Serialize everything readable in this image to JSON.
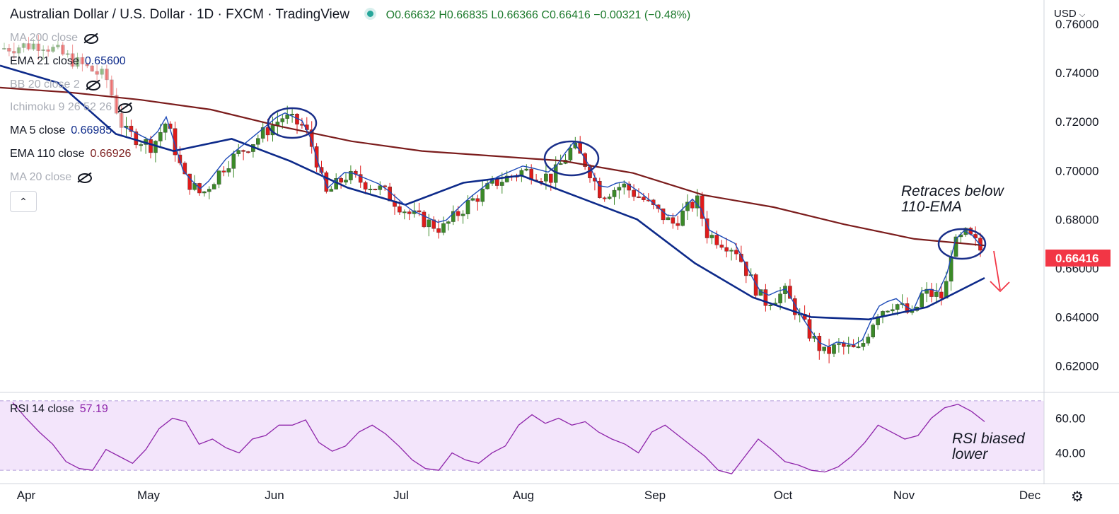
{
  "header": {
    "title": "Australian Dollar / U.S. Dollar · 1D · FXCM · TradingView",
    "ohlc": "O0.66632 H0.66835 L0.66366 C0.66416 −0.00321 (−0.48%)"
  },
  "currency_button": "USD",
  "collapse_icon": "chevron-up-icon",
  "settings_icon": "gear-icon",
  "indicators": [
    {
      "label": "MA 200 close",
      "value": "",
      "hidden": true
    },
    {
      "label": "EMA 21 close",
      "value": "0.65600",
      "hidden": false,
      "color": "#0d2a8a"
    },
    {
      "label": "BB 20 close 2",
      "value": "",
      "hidden": true
    },
    {
      "label": "Ichimoku 9 26 52 26",
      "value": "",
      "hidden": true
    },
    {
      "label": "MA 5 close",
      "value": "0.66985",
      "hidden": false,
      "color": "#0d2a8a"
    },
    {
      "label": "EMA 110 close",
      "value": "0.66926",
      "hidden": false,
      "color": "#7b1c1c"
    },
    {
      "label": "MA 20 close",
      "value": "",
      "hidden": true
    }
  ],
  "annotations": {
    "price": "Retraces below\n110-EMA",
    "rsi": "RSI biased\nlower"
  },
  "rsi": {
    "label": "RSI 14 close",
    "value": "57.19",
    "color": "#8e24aa",
    "band_color": "#f3e5fb",
    "upper": 70,
    "lower": 30,
    "ticks": [
      "60.00",
      "40.00"
    ]
  },
  "chart_data": {
    "type": "candlestick",
    "ylim": [
      0.612,
      0.767
    ],
    "y_ticks": [
      "0.76000",
      "0.74000",
      "0.72000",
      "0.70000",
      "0.68000",
      "0.66000",
      "0.64000",
      "0.62000"
    ],
    "x_ticks": [
      "Apr",
      "May",
      "Jun",
      "Jul",
      "Aug",
      "Sep",
      "Oct",
      "Nov",
      "Dec"
    ],
    "last_price": "0.66416",
    "up_color": "#3b8a28",
    "down_color": "#e01b1b",
    "ema110": [
      0.734,
      0.732,
      0.729,
      0.725,
      0.718,
      0.712,
      0.708,
      0.706,
      0.704,
      0.699,
      0.69,
      0.685,
      0.678,
      0.672,
      0.6693
    ],
    "ema21": [
      0.743,
      0.736,
      0.715,
      0.708,
      0.713,
      0.704,
      0.693,
      0.686,
      0.695,
      0.698,
      0.689,
      0.68,
      0.662,
      0.648,
      0.64,
      0.639,
      0.644,
      0.656
    ],
    "rsi_values": [
      69,
      60,
      52,
      45,
      35,
      31,
      30,
      42,
      38,
      34,
      42,
      54,
      60,
      58,
      45,
      48,
      43,
      40,
      48,
      50,
      56,
      56,
      59,
      46,
      41,
      44,
      52,
      56,
      51,
      44,
      36,
      31,
      30,
      40,
      36,
      34,
      40,
      44,
      56,
      62,
      57,
      60,
      56,
      58,
      52,
      48,
      45,
      40,
      52,
      56,
      50,
      44,
      38,
      30,
      28,
      38,
      48,
      42,
      35,
      33,
      30,
      29,
      32,
      38,
      46,
      56,
      52,
      48,
      50,
      60,
      66,
      68,
      64,
      58
    ]
  }
}
